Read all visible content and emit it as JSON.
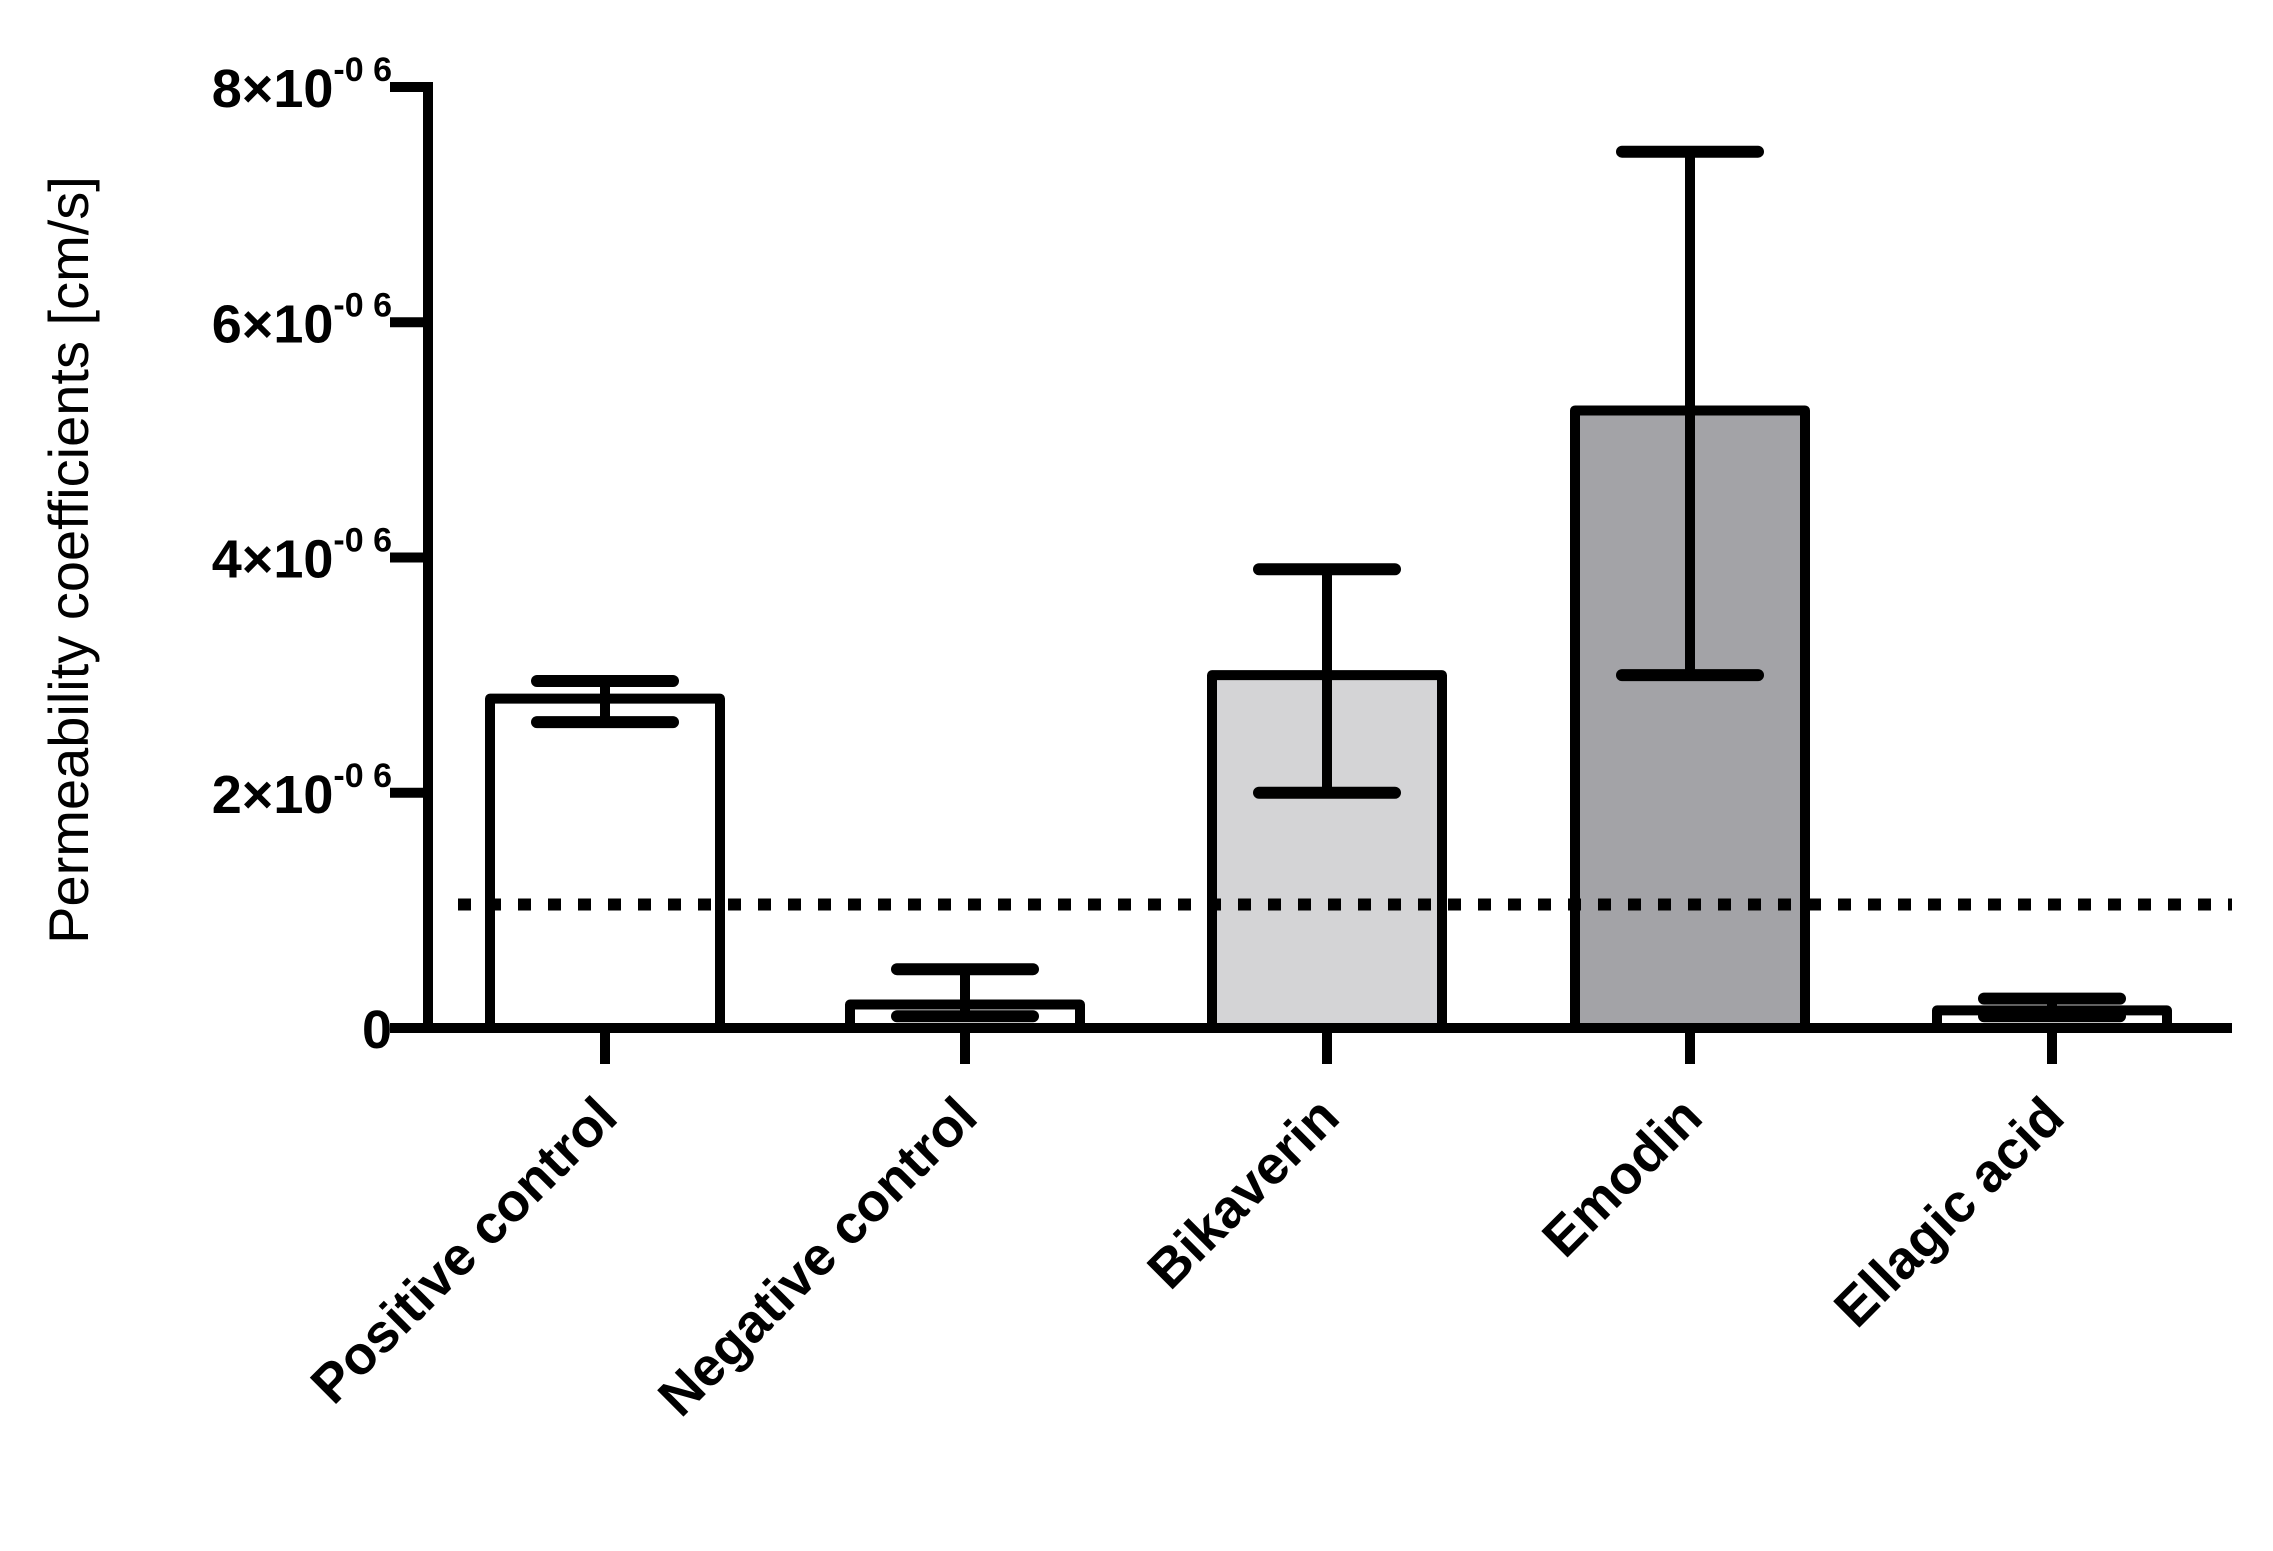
{
  "chart_data": {
    "type": "bar",
    "title": "",
    "xlabel": "",
    "ylabel": "Permeability coefficients [cm/s]",
    "ylim": [
      0,
      8e-06
    ],
    "grid": false,
    "legend": "none",
    "y_ticks": [
      {
        "value": 0,
        "mantissa": "0",
        "times": "",
        "exponent": ""
      },
      {
        "value": 2e-06,
        "mantissa": "2×10",
        "times": "",
        "exponent": "-0 6"
      },
      {
        "value": 4e-06,
        "mantissa": "4×10",
        "times": "",
        "exponent": "-0 6"
      },
      {
        "value": 6e-06,
        "mantissa": "6×10",
        "times": "",
        "exponent": "-0 6"
      },
      {
        "value": 8e-06,
        "mantissa": "8×10",
        "times": "",
        "exponent": "-0 6"
      }
    ],
    "categories": [
      "Positive control",
      "Negative control",
      "Bikaverin",
      "Emodin",
      "Ellagic acid"
    ],
    "values": [
      2.8e-06,
      2e-07,
      3e-06,
      5.25e-06,
      1.5e-07
    ],
    "error_upper": [
      2.95e-06,
      5e-07,
      3.9e-06,
      7.45e-06,
      2.5e-07
    ],
    "error_lower": [
      2.6e-06,
      1e-07,
      2e-06,
      3e-06,
      1e-07
    ],
    "bar_colors": [
      "#ffffff",
      "#ffffff",
      "#d4d4d6",
      "#a3a3a7",
      "#ffffff"
    ],
    "reference_line": {
      "value": 1.05e-06,
      "style": "dotted"
    }
  }
}
